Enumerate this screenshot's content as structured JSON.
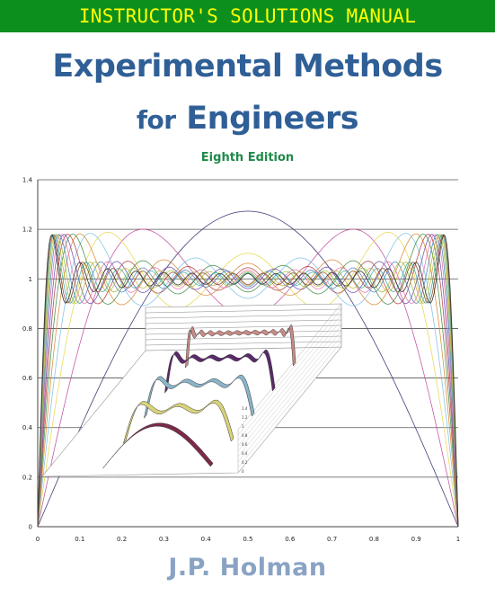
{
  "banner": {
    "text": "INSTRUCTOR'S SOLUTIONS MANUAL"
  },
  "cover": {
    "title_line1": "Experimental Methods",
    "title_line2_small": "for",
    "title_line2_big": "Engineers",
    "edition": "Eighth Edition",
    "author": "J.P. Holman"
  },
  "colors": {
    "banner_bg": "#0d8f1e",
    "banner_text": "#ffff00",
    "title": "#2f5f96",
    "edition": "#1f8a4a",
    "author": "#8aa3c4"
  },
  "chart_data": {
    "type": "line",
    "title": "",
    "xlabel": "",
    "ylabel": "",
    "xlim": [
      0,
      1
    ],
    "ylim": [
      0,
      1.4
    ],
    "x_ticks": [
      "0",
      "0.1",
      "0.2",
      "0.3",
      "0.4",
      "0.5",
      "0.6",
      "0.7",
      "0.8",
      "0.9",
      "1"
    ],
    "y_ticks": [
      "0",
      "0.2",
      "0.4",
      "0.6",
      "0.8",
      "1",
      "1.2",
      "1.4"
    ],
    "grid": "horizontal",
    "series_description": "Fourier-series partial sums of a square pulse (terms 1..15) plus single sine arch peaking at 1.27",
    "inset_z_ticks": [
      "1.4",
      "1.2",
      "1",
      "0.8",
      "0.6",
      "0.4",
      "0.2",
      "0"
    ]
  }
}
